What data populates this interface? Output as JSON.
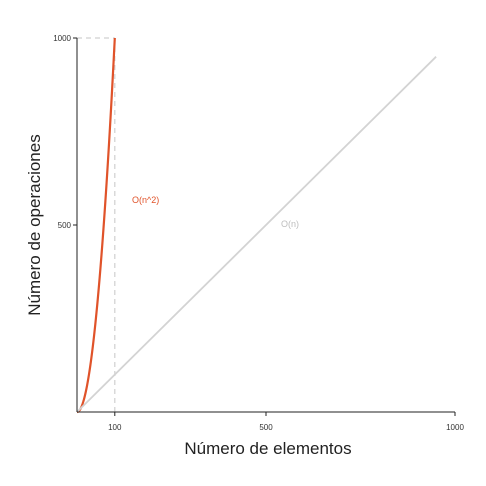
{
  "chart_data": {
    "type": "line",
    "title": "",
    "xlabel": "Número de elementos",
    "ylabel": "Número de operaciones",
    "xlim": [
      0,
      1000
    ],
    "ylim": [
      0,
      1000
    ],
    "x_ticks": [
      "100",
      "500",
      "1000"
    ],
    "y_ticks": [
      "500",
      "1000"
    ],
    "grid": false,
    "series": [
      {
        "name": "O(n^2)",
        "color": "#e0532a",
        "x": [
          0,
          10,
          20,
          30,
          40,
          50,
          60,
          70,
          80,
          90,
          100
        ],
        "y": [
          0,
          10,
          40,
          90,
          160,
          250,
          360,
          490,
          640,
          810,
          1000
        ]
      },
      {
        "name": "O(n)",
        "color": "#d3d3d3",
        "x": [
          0,
          950
        ],
        "y": [
          0,
          950
        ]
      }
    ],
    "reference_lines": {
      "x": 100,
      "y": 1000,
      "color": "#d0d0d0",
      "style": "dashed"
    }
  }
}
